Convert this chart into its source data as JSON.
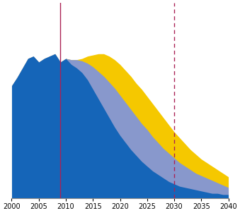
{
  "years": [
    2000,
    2001,
    2002,
    2003,
    2004,
    2005,
    2006,
    2007,
    2008,
    2009,
    2010,
    2011,
    2012,
    2013,
    2014,
    2015,
    2016,
    2017,
    2018,
    2019,
    2020,
    2021,
    2022,
    2023,
    2024,
    2025,
    2026,
    2027,
    2028,
    2029,
    2030,
    2031,
    2032,
    2033,
    2034,
    2035,
    2036,
    2037,
    2038,
    2039,
    2040
  ],
  "blue_total": [
    95,
    102,
    110,
    118,
    120,
    115,
    118,
    120,
    122,
    115,
    118,
    113,
    110,
    106,
    100,
    92,
    84,
    76,
    68,
    60,
    53,
    47,
    41,
    36,
    31,
    27,
    23,
    20,
    17,
    14,
    12,
    10,
    9,
    8,
    7,
    6,
    5,
    4,
    4,
    3,
    3
  ],
  "light_blue_total": [
    95,
    102,
    110,
    118,
    120,
    115,
    118,
    120,
    122,
    115,
    118,
    115,
    114,
    112,
    108,
    103,
    97,
    91,
    84,
    77,
    70,
    63,
    57,
    51,
    45,
    40,
    35,
    31,
    27,
    23,
    20,
    17,
    15,
    13,
    11,
    10,
    9,
    8,
    7,
    6,
    5
  ],
  "medium_blue_total": [
    95,
    102,
    110,
    118,
    120,
    115,
    118,
    120,
    122,
    115,
    118,
    117,
    117,
    116,
    114,
    111,
    107,
    103,
    98,
    93,
    87,
    81,
    75,
    69,
    63,
    58,
    52,
    47,
    42,
    38,
    34,
    30,
    27,
    24,
    21,
    19,
    17,
    15,
    13,
    11,
    9
  ],
  "yellow_total": [
    95,
    102,
    110,
    118,
    120,
    115,
    118,
    120,
    122,
    115,
    118,
    117,
    117,
    118,
    120,
    121,
    122,
    122,
    120,
    117,
    113,
    108,
    103,
    97,
    92,
    86,
    80,
    74,
    68,
    62,
    56,
    51,
    46,
    41,
    37,
    33,
    30,
    27,
    24,
    21,
    18
  ],
  "color_blue": "#1565b8",
  "color_medium_blue": "#8898cc",
  "color_light_blue": "#bdc9e0",
  "color_yellow": "#f5c800",
  "vline_solid_x": 2009,
  "vline_solid_color": "#aa2255",
  "vline_dashed_x": 2030,
  "vline_dashed_color": "#aa2255",
  "xlim": [
    2000,
    2040
  ],
  "ylim": [
    0,
    165
  ],
  "xticks": [
    2000,
    2005,
    2010,
    2015,
    2020,
    2025,
    2030,
    2035,
    2040
  ],
  "bg_color": "#ffffff"
}
